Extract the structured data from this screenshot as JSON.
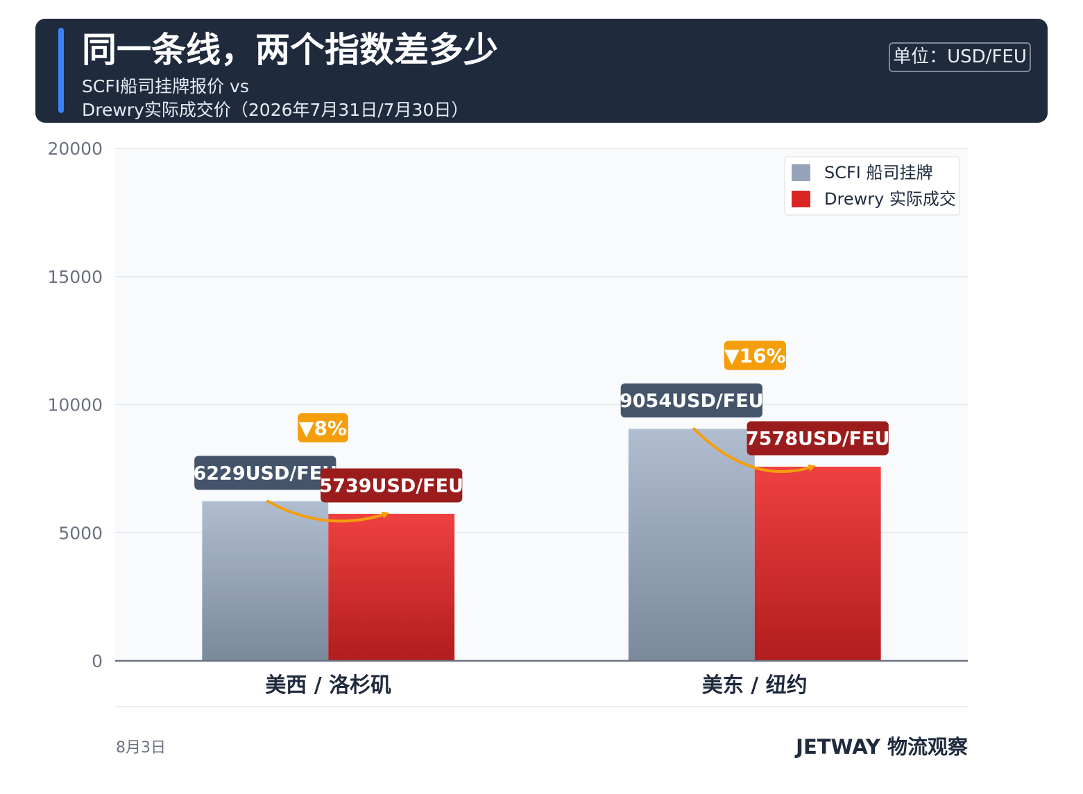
{
  "header": {
    "title": "同一条线，两个指数差多少",
    "subtitle_line1": "SCFI船司挂牌报价 vs",
    "subtitle_line2": "Drewry实际成交价（2026年7月31日/7月30日）",
    "unit": "单位：USD/FEU"
  },
  "chart_data": {
    "type": "bar",
    "categories": [
      "美西 / 洛杉矶",
      "美东 / 纽约"
    ],
    "series": [
      {
        "name": "SCFI 船司挂牌",
        "values": [
          6229,
          9054
        ],
        "color": "#94a3b8"
      },
      {
        "name": "Drewry 实际成交",
        "values": [
          5739,
          7578
        ],
        "color": "#dc2626"
      }
    ],
    "value_labels": [
      [
        "6229USD/FEU",
        "9054USD/FEU"
      ],
      [
        "5739USD/FEU",
        "7578USD/FEU"
      ]
    ],
    "change_labels": [
      "▼8%",
      "▼16%"
    ],
    "ylim": [
      0,
      20000
    ],
    "yticks": [
      0,
      5000,
      10000,
      15000,
      20000
    ],
    "grid": true,
    "legend_position": "top-right",
    "accent_color": "#f59e0b"
  },
  "footer": {
    "date": "8月3日",
    "brand": "JETWAY 物流观察"
  }
}
